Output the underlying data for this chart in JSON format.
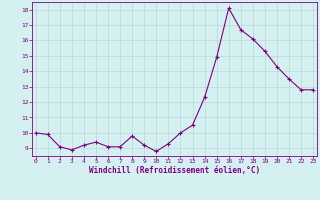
{
  "x": [
    0,
    1,
    2,
    3,
    4,
    5,
    6,
    7,
    8,
    9,
    10,
    11,
    12,
    13,
    14,
    15,
    16,
    17,
    18,
    19,
    20,
    21,
    22,
    23
  ],
  "y": [
    10.0,
    9.9,
    9.1,
    8.9,
    9.2,
    9.4,
    9.1,
    9.1,
    9.8,
    9.2,
    8.8,
    9.3,
    10.0,
    10.5,
    12.3,
    14.9,
    18.1,
    16.7,
    16.1,
    15.3,
    14.3,
    13.5,
    12.8,
    12.8
  ],
  "xlabel": "Windchill (Refroidissement éolien,°C)",
  "ylim": [
    8.5,
    18.5
  ],
  "yticks": [
    9,
    10,
    11,
    12,
    13,
    14,
    15,
    16,
    17,
    18
  ],
  "xticks": [
    0,
    1,
    2,
    3,
    4,
    5,
    6,
    7,
    8,
    9,
    10,
    11,
    12,
    13,
    14,
    15,
    16,
    17,
    18,
    19,
    20,
    21,
    22,
    23
  ],
  "line_color": "#800080",
  "marker": "+",
  "bg_color": "#d4f0f0",
  "grid_color": "#b8d8d8",
  "xlabel_color": "#800080",
  "tick_color": "#800080",
  "linewidth": 0.8,
  "markersize": 3.5,
  "tick_fontsize": 4.5,
  "xlabel_fontsize": 5.5
}
